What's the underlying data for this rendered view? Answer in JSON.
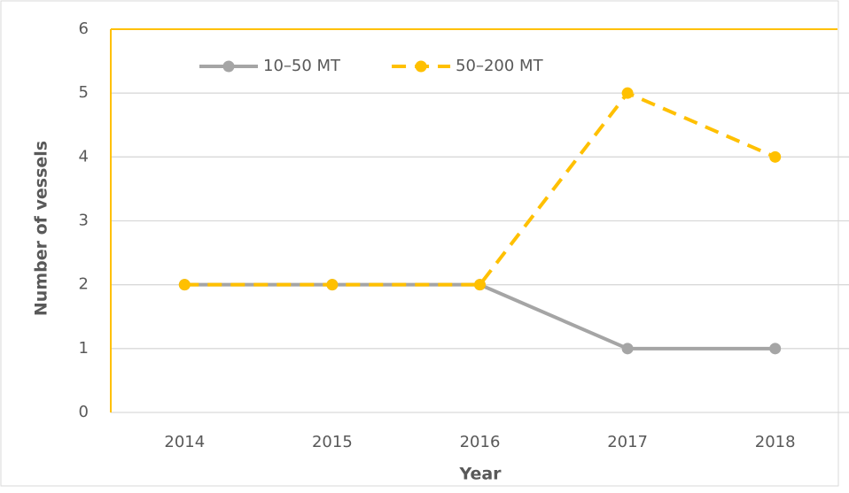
{
  "chart_data": {
    "type": "line",
    "xlabel": "Year",
    "ylabel": "Number of vessels",
    "categories": [
      "2014",
      "2015",
      "2016",
      "2017",
      "2018"
    ],
    "series": [
      {
        "name": "10–50 MT",
        "color": "#a5a5a5",
        "line_style": "solid",
        "values": [
          2,
          2,
          2,
          1,
          1
        ]
      },
      {
        "name": "50–200 MT",
        "color": "#ffc000",
        "line_style": "dashed",
        "values": [
          2,
          2,
          2,
          5,
          4
        ]
      }
    ],
    "ylim": [
      0,
      6
    ],
    "yticks": [
      0,
      1,
      2,
      3,
      4,
      5,
      6
    ],
    "grid": true,
    "legend": "top-left"
  }
}
